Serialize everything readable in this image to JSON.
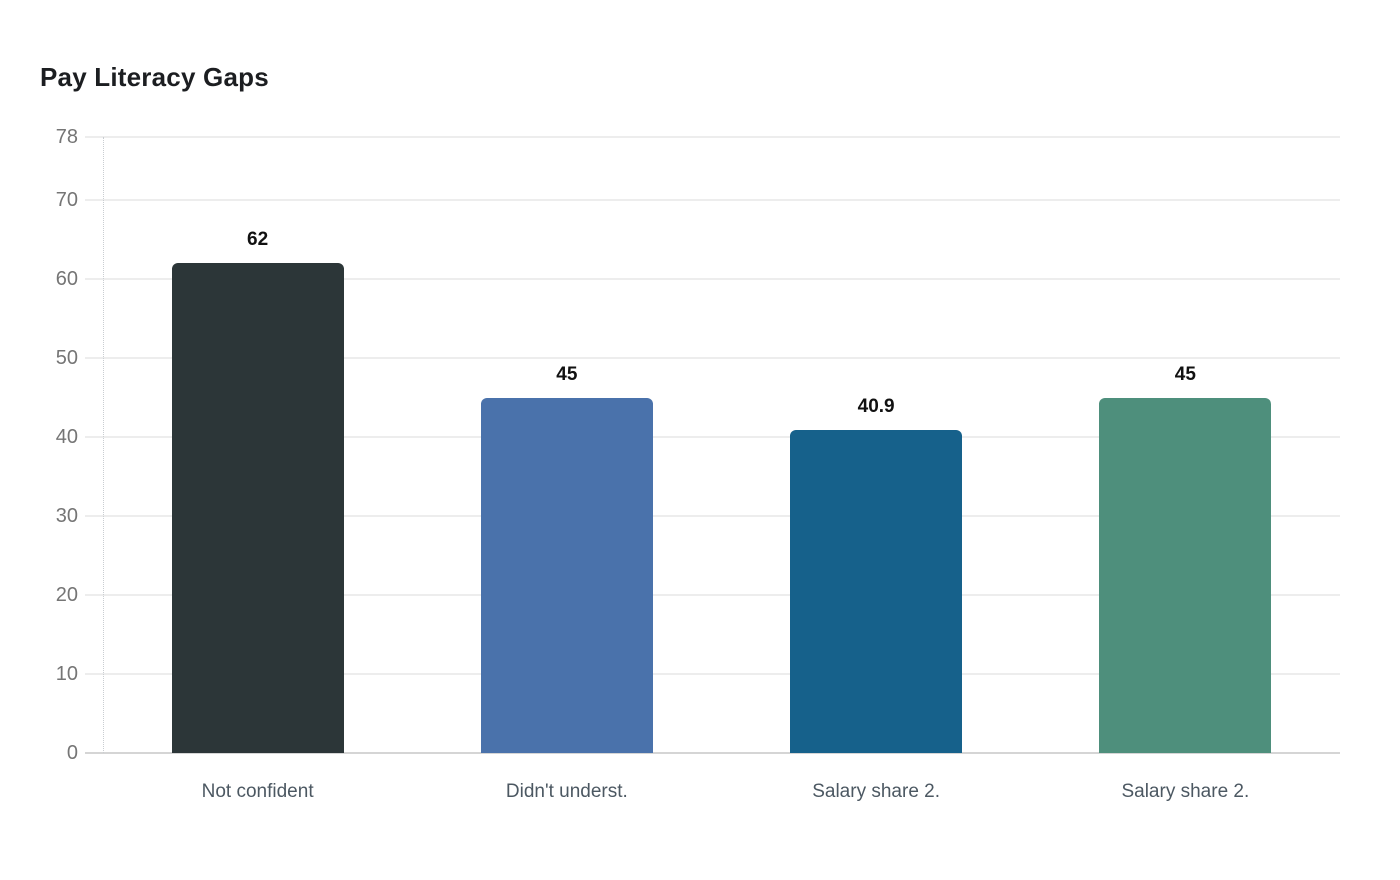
{
  "chart_data": {
    "type": "bar",
    "title": "Pay Literacy Gaps",
    "categories": [
      "Not confident",
      "Didn't underst.",
      "Salary share 2.",
      "Salary share 2."
    ],
    "values": [
      62,
      45,
      40.9,
      45
    ],
    "value_labels": [
      "62",
      "45",
      "40.9",
      "45"
    ],
    "bar_colors": [
      "#2c3638",
      "#4a72ab",
      "#16618b",
      "#4e8f7c"
    ],
    "xlabel": "",
    "ylabel": "",
    "ylim": [
      0,
      78
    ],
    "yticks": [
      0,
      10,
      20,
      30,
      40,
      50,
      60,
      70,
      78
    ],
    "grid": "horizontal",
    "legend": "none"
  },
  "style_colors": {
    "gridline": "#ededed",
    "baseline": "#d5d5d5",
    "axis_dotted_line": "#c9cdd1",
    "y_tick_label": "#757575",
    "x_tick_label": "#4c5862",
    "value_label": "#111111",
    "title": "#1c1e21",
    "background": "#ffffff"
  }
}
